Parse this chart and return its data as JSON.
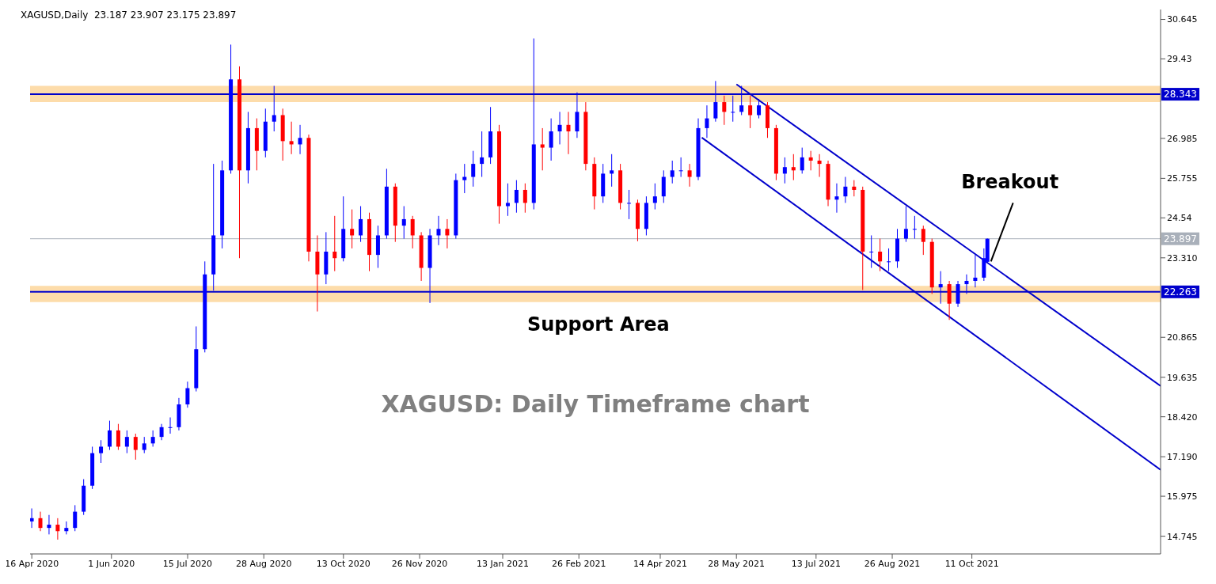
{
  "chart_data": {
    "type": "candlestick",
    "title": "XAGUSD: Daily Timeframe chart",
    "annotations": [
      "XAGUSD,Daily  23.187 23.907 23.175 23.897",
      "Support Area",
      {
        "text": "Breakout",
        "x": "2021-10-22",
        "y": 23.2
      }
    ],
    "x": [
      "2020-04-16",
      "2020-04-21",
      "2020-04-26",
      "2020-05-01",
      "2020-05-06",
      "2020-05-11",
      "2020-05-16",
      "2020-05-21",
      "2020-05-26",
      "2020-05-31",
      "2020-06-05",
      "2020-06-10",
      "2020-06-15",
      "2020-06-20",
      "2020-06-25",
      "2020-06-30",
      "2020-07-05",
      "2020-07-10",
      "2020-07-15",
      "2020-07-20",
      "2020-07-25",
      "2020-07-30",
      "2020-08-04",
      "2020-08-09",
      "2020-08-14",
      "2020-08-19",
      "2020-08-24",
      "2020-08-29",
      "2020-09-03",
      "2020-09-08",
      "2020-09-13",
      "2020-09-18",
      "2020-09-23",
      "2020-09-28",
      "2020-10-03",
      "2020-10-08",
      "2020-10-13",
      "2020-10-18",
      "2020-10-23",
      "2020-10-28",
      "2020-11-02",
      "2020-11-07",
      "2020-11-12",
      "2020-11-17",
      "2020-11-22",
      "2020-11-27",
      "2020-12-02",
      "2020-12-07",
      "2020-12-12",
      "2020-12-17",
      "2020-12-22",
      "2020-12-27",
      "2021-01-01",
      "2021-01-06",
      "2021-01-11",
      "2021-01-16",
      "2021-01-21",
      "2021-01-26",
      "2021-01-31",
      "2021-02-05",
      "2021-02-10",
      "2021-02-15",
      "2021-02-20",
      "2021-02-25",
      "2021-03-02",
      "2021-03-07",
      "2021-03-12",
      "2021-03-17",
      "2021-03-22",
      "2021-03-27",
      "2021-04-01",
      "2021-04-06",
      "2021-04-11",
      "2021-04-16",
      "2021-04-21",
      "2021-04-26",
      "2021-05-01",
      "2021-05-06",
      "2021-05-11",
      "2021-05-16",
      "2021-05-21",
      "2021-05-26",
      "2021-05-31",
      "2021-06-05",
      "2021-06-10",
      "2021-06-15",
      "2021-06-20",
      "2021-06-25",
      "2021-06-30",
      "2021-07-05",
      "2021-07-10",
      "2021-07-15",
      "2021-07-20",
      "2021-07-25",
      "2021-07-30",
      "2021-08-04",
      "2021-08-09",
      "2021-08-14",
      "2021-08-19",
      "2021-08-24",
      "2021-08-29",
      "2021-09-03",
      "2021-09-08",
      "2021-09-13",
      "2021-09-18",
      "2021-09-23",
      "2021-09-28",
      "2021-10-03",
      "2021-10-08",
      "2021-10-13",
      "2021-10-18",
      "2021-10-20"
    ],
    "ohlc": [
      [
        15.2,
        15.6,
        15.0,
        15.3
      ],
      [
        15.3,
        15.5,
        14.9,
        15.0
      ],
      [
        15.0,
        15.4,
        14.8,
        15.1
      ],
      [
        15.1,
        15.3,
        14.64,
        14.9
      ],
      [
        14.9,
        15.2,
        14.8,
        15.0
      ],
      [
        15.0,
        15.7,
        14.9,
        15.5
      ],
      [
        15.5,
        16.5,
        15.4,
        16.3
      ],
      [
        16.3,
        17.5,
        16.2,
        17.3
      ],
      [
        17.3,
        17.7,
        17.0,
        17.5
      ],
      [
        17.5,
        18.3,
        17.4,
        18.0
      ],
      [
        18.0,
        18.2,
        17.4,
        17.5
      ],
      [
        17.5,
        18.0,
        17.3,
        17.8
      ],
      [
        17.8,
        17.9,
        17.1,
        17.4
      ],
      [
        17.4,
        17.8,
        17.3,
        17.6
      ],
      [
        17.6,
        18.0,
        17.5,
        17.8
      ],
      [
        17.8,
        18.2,
        17.7,
        18.1
      ],
      [
        18.1,
        18.4,
        17.9,
        18.1
      ],
      [
        18.1,
        19.0,
        18.0,
        18.8
      ],
      [
        18.8,
        19.5,
        18.7,
        19.3
      ],
      [
        19.3,
        21.2,
        19.2,
        20.5
      ],
      [
        20.5,
        23.2,
        20.4,
        22.8
      ],
      [
        22.8,
        26.2,
        22.3,
        24.0
      ],
      [
        24.0,
        26.3,
        23.6,
        26.0
      ],
      [
        26.0,
        29.87,
        25.9,
        28.8
      ],
      [
        28.8,
        29.2,
        23.3,
        26.0
      ],
      [
        26.0,
        27.8,
        25.6,
        27.3
      ],
      [
        27.3,
        27.6,
        26.0,
        26.6
      ],
      [
        26.6,
        27.9,
        26.4,
        27.5
      ],
      [
        27.5,
        28.6,
        27.2,
        27.7
      ],
      [
        27.7,
        27.9,
        26.3,
        26.9
      ],
      [
        26.9,
        27.5,
        26.5,
        26.8
      ],
      [
        26.8,
        27.4,
        26.5,
        27.0
      ],
      [
        27.0,
        27.1,
        23.2,
        23.5
      ],
      [
        23.5,
        24.0,
        21.66,
        22.8
      ],
      [
        22.8,
        24.1,
        22.5,
        23.5
      ],
      [
        23.5,
        24.6,
        22.9,
        23.3
      ],
      [
        23.3,
        25.2,
        23.2,
        24.2
      ],
      [
        24.2,
        24.8,
        23.6,
        24.0
      ],
      [
        24.0,
        24.9,
        23.8,
        24.5
      ],
      [
        24.5,
        24.7,
        22.9,
        23.4
      ],
      [
        23.4,
        24.3,
        23.0,
        24.0
      ],
      [
        24.0,
        26.05,
        23.9,
        25.5
      ],
      [
        25.5,
        25.6,
        23.8,
        24.3
      ],
      [
        24.3,
        24.9,
        23.9,
        24.5
      ],
      [
        24.5,
        24.6,
        23.6,
        24.0
      ],
      [
        24.0,
        24.1,
        22.6,
        23.0
      ],
      [
        23.0,
        24.2,
        21.92,
        24.0
      ],
      [
        24.0,
        24.6,
        23.7,
        24.2
      ],
      [
        24.2,
        24.5,
        23.6,
        24.0
      ],
      [
        24.0,
        25.9,
        23.9,
        25.7
      ],
      [
        25.7,
        26.2,
        25.3,
        25.8
      ],
      [
        25.8,
        26.6,
        25.5,
        26.2
      ],
      [
        26.2,
        27.2,
        25.8,
        26.4
      ],
      [
        26.4,
        27.95,
        26.2,
        27.2
      ],
      [
        27.2,
        27.4,
        24.36,
        24.9
      ],
      [
        24.9,
        25.6,
        24.6,
        25.0
      ],
      [
        25.0,
        25.7,
        24.7,
        25.4
      ],
      [
        25.4,
        25.6,
        24.7,
        25.0
      ],
      [
        25.0,
        30.06,
        24.8,
        26.8
      ],
      [
        26.8,
        27.3,
        26.0,
        26.7
      ],
      [
        26.7,
        27.6,
        26.3,
        27.2
      ],
      [
        27.2,
        27.8,
        26.8,
        27.4
      ],
      [
        27.4,
        27.8,
        26.5,
        27.2
      ],
      [
        27.2,
        28.4,
        27.0,
        27.8
      ],
      [
        27.8,
        28.1,
        26.0,
        26.2
      ],
      [
        26.2,
        26.4,
        24.8,
        25.2
      ],
      [
        25.2,
        26.2,
        25.0,
        25.9
      ],
      [
        25.9,
        26.5,
        25.5,
        26.0
      ],
      [
        26.0,
        26.2,
        24.8,
        25.0
      ],
      [
        25.0,
        25.4,
        24.5,
        25.0
      ],
      [
        25.0,
        25.1,
        23.82,
        24.2
      ],
      [
        24.2,
        25.2,
        24.0,
        25.0
      ],
      [
        25.0,
        25.6,
        24.8,
        25.2
      ],
      [
        25.2,
        26.0,
        25.0,
        25.8
      ],
      [
        25.8,
        26.3,
        25.6,
        26.0
      ],
      [
        26.0,
        26.4,
        25.8,
        26.0
      ],
      [
        26.0,
        26.2,
        25.5,
        25.8
      ],
      [
        25.8,
        27.6,
        25.7,
        27.3
      ],
      [
        27.3,
        28.0,
        27.0,
        27.6
      ],
      [
        27.6,
        28.75,
        27.5,
        28.1
      ],
      [
        28.1,
        28.3,
        27.4,
        27.8
      ],
      [
        27.8,
        28.3,
        27.5,
        27.8
      ],
      [
        27.8,
        28.6,
        27.7,
        28.0
      ],
      [
        28.0,
        28.3,
        27.3,
        27.7
      ],
      [
        27.7,
        28.2,
        27.6,
        28.0
      ],
      [
        28.0,
        28.1,
        27.0,
        27.3
      ],
      [
        27.3,
        27.4,
        25.7,
        25.9
      ],
      [
        25.9,
        26.4,
        25.6,
        26.1
      ],
      [
        26.1,
        26.5,
        25.7,
        26.0
      ],
      [
        26.0,
        26.7,
        25.9,
        26.4
      ],
      [
        26.4,
        26.6,
        26.0,
        26.3
      ],
      [
        26.3,
        26.5,
        25.8,
        26.2
      ],
      [
        26.2,
        26.3,
        24.9,
        25.1
      ],
      [
        25.1,
        25.6,
        24.7,
        25.2
      ],
      [
        25.2,
        25.8,
        25.0,
        25.5
      ],
      [
        25.5,
        25.7,
        25.2,
        25.4
      ],
      [
        25.4,
        25.5,
        22.32,
        23.5
      ],
      [
        23.5,
        24.0,
        23.0,
        23.5
      ],
      [
        23.5,
        23.9,
        22.9,
        23.2
      ],
      [
        23.2,
        23.6,
        22.9,
        23.2
      ],
      [
        23.2,
        24.2,
        23.0,
        23.9
      ],
      [
        23.9,
        24.9,
        23.8,
        24.2
      ],
      [
        24.2,
        24.6,
        23.9,
        24.2
      ],
      [
        24.2,
        24.3,
        23.4,
        23.8
      ],
      [
        23.8,
        23.9,
        22.2,
        22.4
      ],
      [
        22.4,
        22.9,
        21.9,
        22.5
      ],
      [
        22.5,
        22.6,
        21.4,
        21.9
      ],
      [
        21.9,
        22.6,
        21.8,
        22.5
      ],
      [
        22.5,
        22.8,
        22.2,
        22.6
      ],
      [
        22.6,
        23.4,
        22.4,
        22.7
      ],
      [
        22.7,
        23.6,
        22.6,
        23.3
      ],
      [
        23.187,
        23.907,
        23.175,
        23.897
      ]
    ],
    "colors": [
      "#0000ff",
      "#ff0000",
      "#0000ff",
      "#ff0000",
      "#0000ff",
      "#0000ff",
      "#0000ff",
      "#0000ff",
      "#0000ff",
      "#0000ff",
      "#ff0000",
      "#0000ff",
      "#ff0000",
      "#0000ff",
      "#0000ff",
      "#0000ff",
      "#0000ff",
      "#0000ff",
      "#0000ff",
      "#0000ff",
      "#0000ff",
      "#0000ff",
      "#0000ff",
      "#0000ff",
      "#ff0000",
      "#0000ff",
      "#ff0000",
      "#0000ff",
      "#0000ff",
      "#ff0000",
      "#ff0000",
      "#0000ff",
      "#ff0000",
      "#ff0000",
      "#0000ff",
      "#ff0000",
      "#0000ff",
      "#ff0000",
      "#0000ff",
      "#ff0000",
      "#0000ff",
      "#0000ff",
      "#ff0000",
      "#0000ff",
      "#ff0000",
      "#ff0000",
      "#0000ff",
      "#0000ff",
      "#ff0000",
      "#0000ff",
      "#0000ff",
      "#0000ff",
      "#0000ff",
      "#0000ff",
      "#ff0000",
      "#0000ff",
      "#0000ff",
      "#ff0000",
      "#0000ff",
      "#ff0000",
      "#0000ff",
      "#0000ff",
      "#ff0000",
      "#0000ff",
      "#ff0000",
      "#ff0000",
      "#0000ff",
      "#0000ff",
      "#ff0000",
      "#0000ff",
      "#ff0000",
      "#0000ff",
      "#0000ff",
      "#0000ff",
      "#0000ff",
      "#0000ff",
      "#ff0000",
      "#0000ff",
      "#0000ff",
      "#0000ff",
      "#ff0000",
      "#0000ff",
      "#0000ff",
      "#ff0000",
      "#0000ff",
      "#ff0000",
      "#ff0000",
      "#0000ff",
      "#ff0000",
      "#0000ff",
      "#ff0000",
      "#ff0000",
      "#ff0000",
      "#0000ff",
      "#0000ff",
      "#ff0000",
      "#ff0000",
      "#0000ff",
      "#ff0000",
      "#0000ff",
      "#0000ff",
      "#0000ff",
      "#0000ff",
      "#ff0000",
      "#ff0000",
      "#0000ff",
      "#ff0000",
      "#0000ff",
      "#0000ff",
      "#0000ff",
      "#0000ff",
      "#0000ff"
    ],
    "series": [
      {
        "type": "line",
        "x": [
          "2021-05-28",
          "2022-01-28"
        ],
        "values": [
          28.65,
          19.37
        ],
        "color": "#0000cc"
      },
      {
        "type": "line",
        "x": [
          "2021-05-08",
          "2022-01-28"
        ],
        "values": [
          27.01,
          16.79
        ],
        "color": "#0000cc"
      }
    ],
    "ref_lines": [
      {
        "axis": "y",
        "value": 28.343,
        "label": "28.343",
        "color": "#0000cc"
      },
      {
        "axis": "y",
        "value": 22.263,
        "label": "22.263",
        "color": "#0000cc"
      },
      {
        "axis": "y",
        "value": 23.897,
        "label": "23.897",
        "color": "#a9b0ba"
      }
    ],
    "bands": [
      {
        "axis": "y",
        "from": 28.1,
        "to": 28.6,
        "color": "#fddcaa"
      },
      {
        "axis": "y",
        "from": 21.95,
        "to": 22.45,
        "color": "#fddcaa"
      }
    ],
    "xlim": [
      "2020-04-15",
      "2022-01-28"
    ],
    "xticks": [
      {
        "value": "2020-04-16",
        "label": "16 Apr 2020"
      },
      {
        "value": "2020-06-01",
        "label": "1 Jun 2020"
      },
      {
        "value": "2020-07-15",
        "label": "15 Jul 2020"
      },
      {
        "value": "2020-08-28",
        "label": "28 Aug 2020"
      },
      {
        "value": "2020-10-13",
        "label": "13 Oct 2020"
      },
      {
        "value": "2020-11-26",
        "label": "26 Nov 2020"
      },
      {
        "value": "2021-01-13",
        "label": "13 Jan 2021"
      },
      {
        "value": "2021-02-26",
        "label": "26 Feb 2021"
      },
      {
        "value": "2021-04-14",
        "label": "14 Apr 2021"
      },
      {
        "value": "2021-05-28",
        "label": "28 May 2021"
      },
      {
        "value": "2021-07-13",
        "label": "13 Jul 2021"
      },
      {
        "value": "2021-08-26",
        "label": "26 Aug 2021"
      },
      {
        "value": "2021-10-11",
        "label": "11 Oct 2021"
      }
    ],
    "ylim": [
      14.2,
      30.95
    ],
    "yticks": [
      14.745,
      15.975,
      {
        "value": 17.19,
        "label": "17.190"
      },
      {
        "value": 18.42,
        "label": "18.420"
      },
      19.635,
      20.865,
      {
        "value": 23.31,
        "label": "23.310"
      },
      24.54,
      25.755,
      26.985,
      29.43,
      30.645
    ],
    "grid": false,
    "legend": false
  }
}
